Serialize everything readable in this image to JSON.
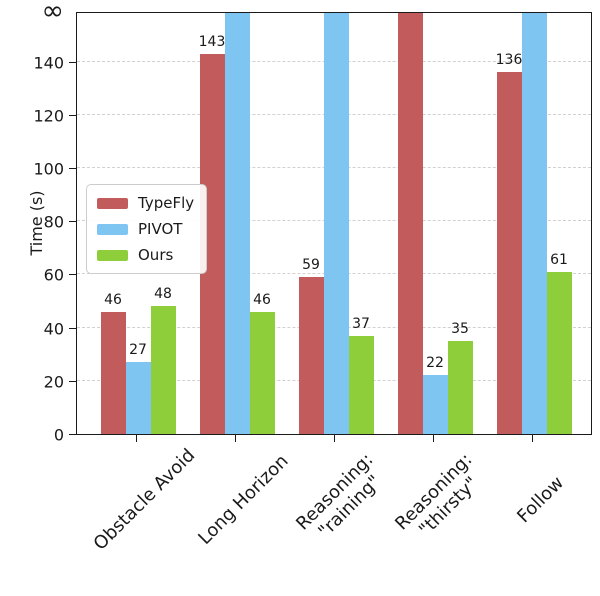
{
  "chart_data": {
    "type": "bar",
    "title": "",
    "xlabel": "",
    "ylabel": "Time (s)",
    "categories": [
      "Obstacle Avoid",
      "Long Horizon",
      "Reasoning:\n\"raining\"",
      "Reasoning:\n\"thirsty\"",
      "Follow"
    ],
    "series": [
      {
        "name": "TypeFly",
        "color": "#C25B5B",
        "values": [
          46,
          143,
          59,
          "inf",
          136
        ]
      },
      {
        "name": "PIVOT",
        "color": "#7EC5F2",
        "values": [
          27,
          "inf",
          "inf",
          22,
          "inf"
        ]
      },
      {
        "name": "Ours",
        "color": "#8DCE3A",
        "values": [
          48,
          46,
          37,
          35,
          61
        ]
      }
    ],
    "yticks": [
      0,
      20,
      40,
      60,
      80,
      100,
      120,
      140
    ],
    "ytop_label": "∞",
    "ylim": [
      0,
      159
    ],
    "grid": "horizontal-dashed",
    "legend_position": "center-left",
    "bar_value_labels_shown_for_finite_values": true,
    "infinite_bars_reach_plot_top": true
  }
}
